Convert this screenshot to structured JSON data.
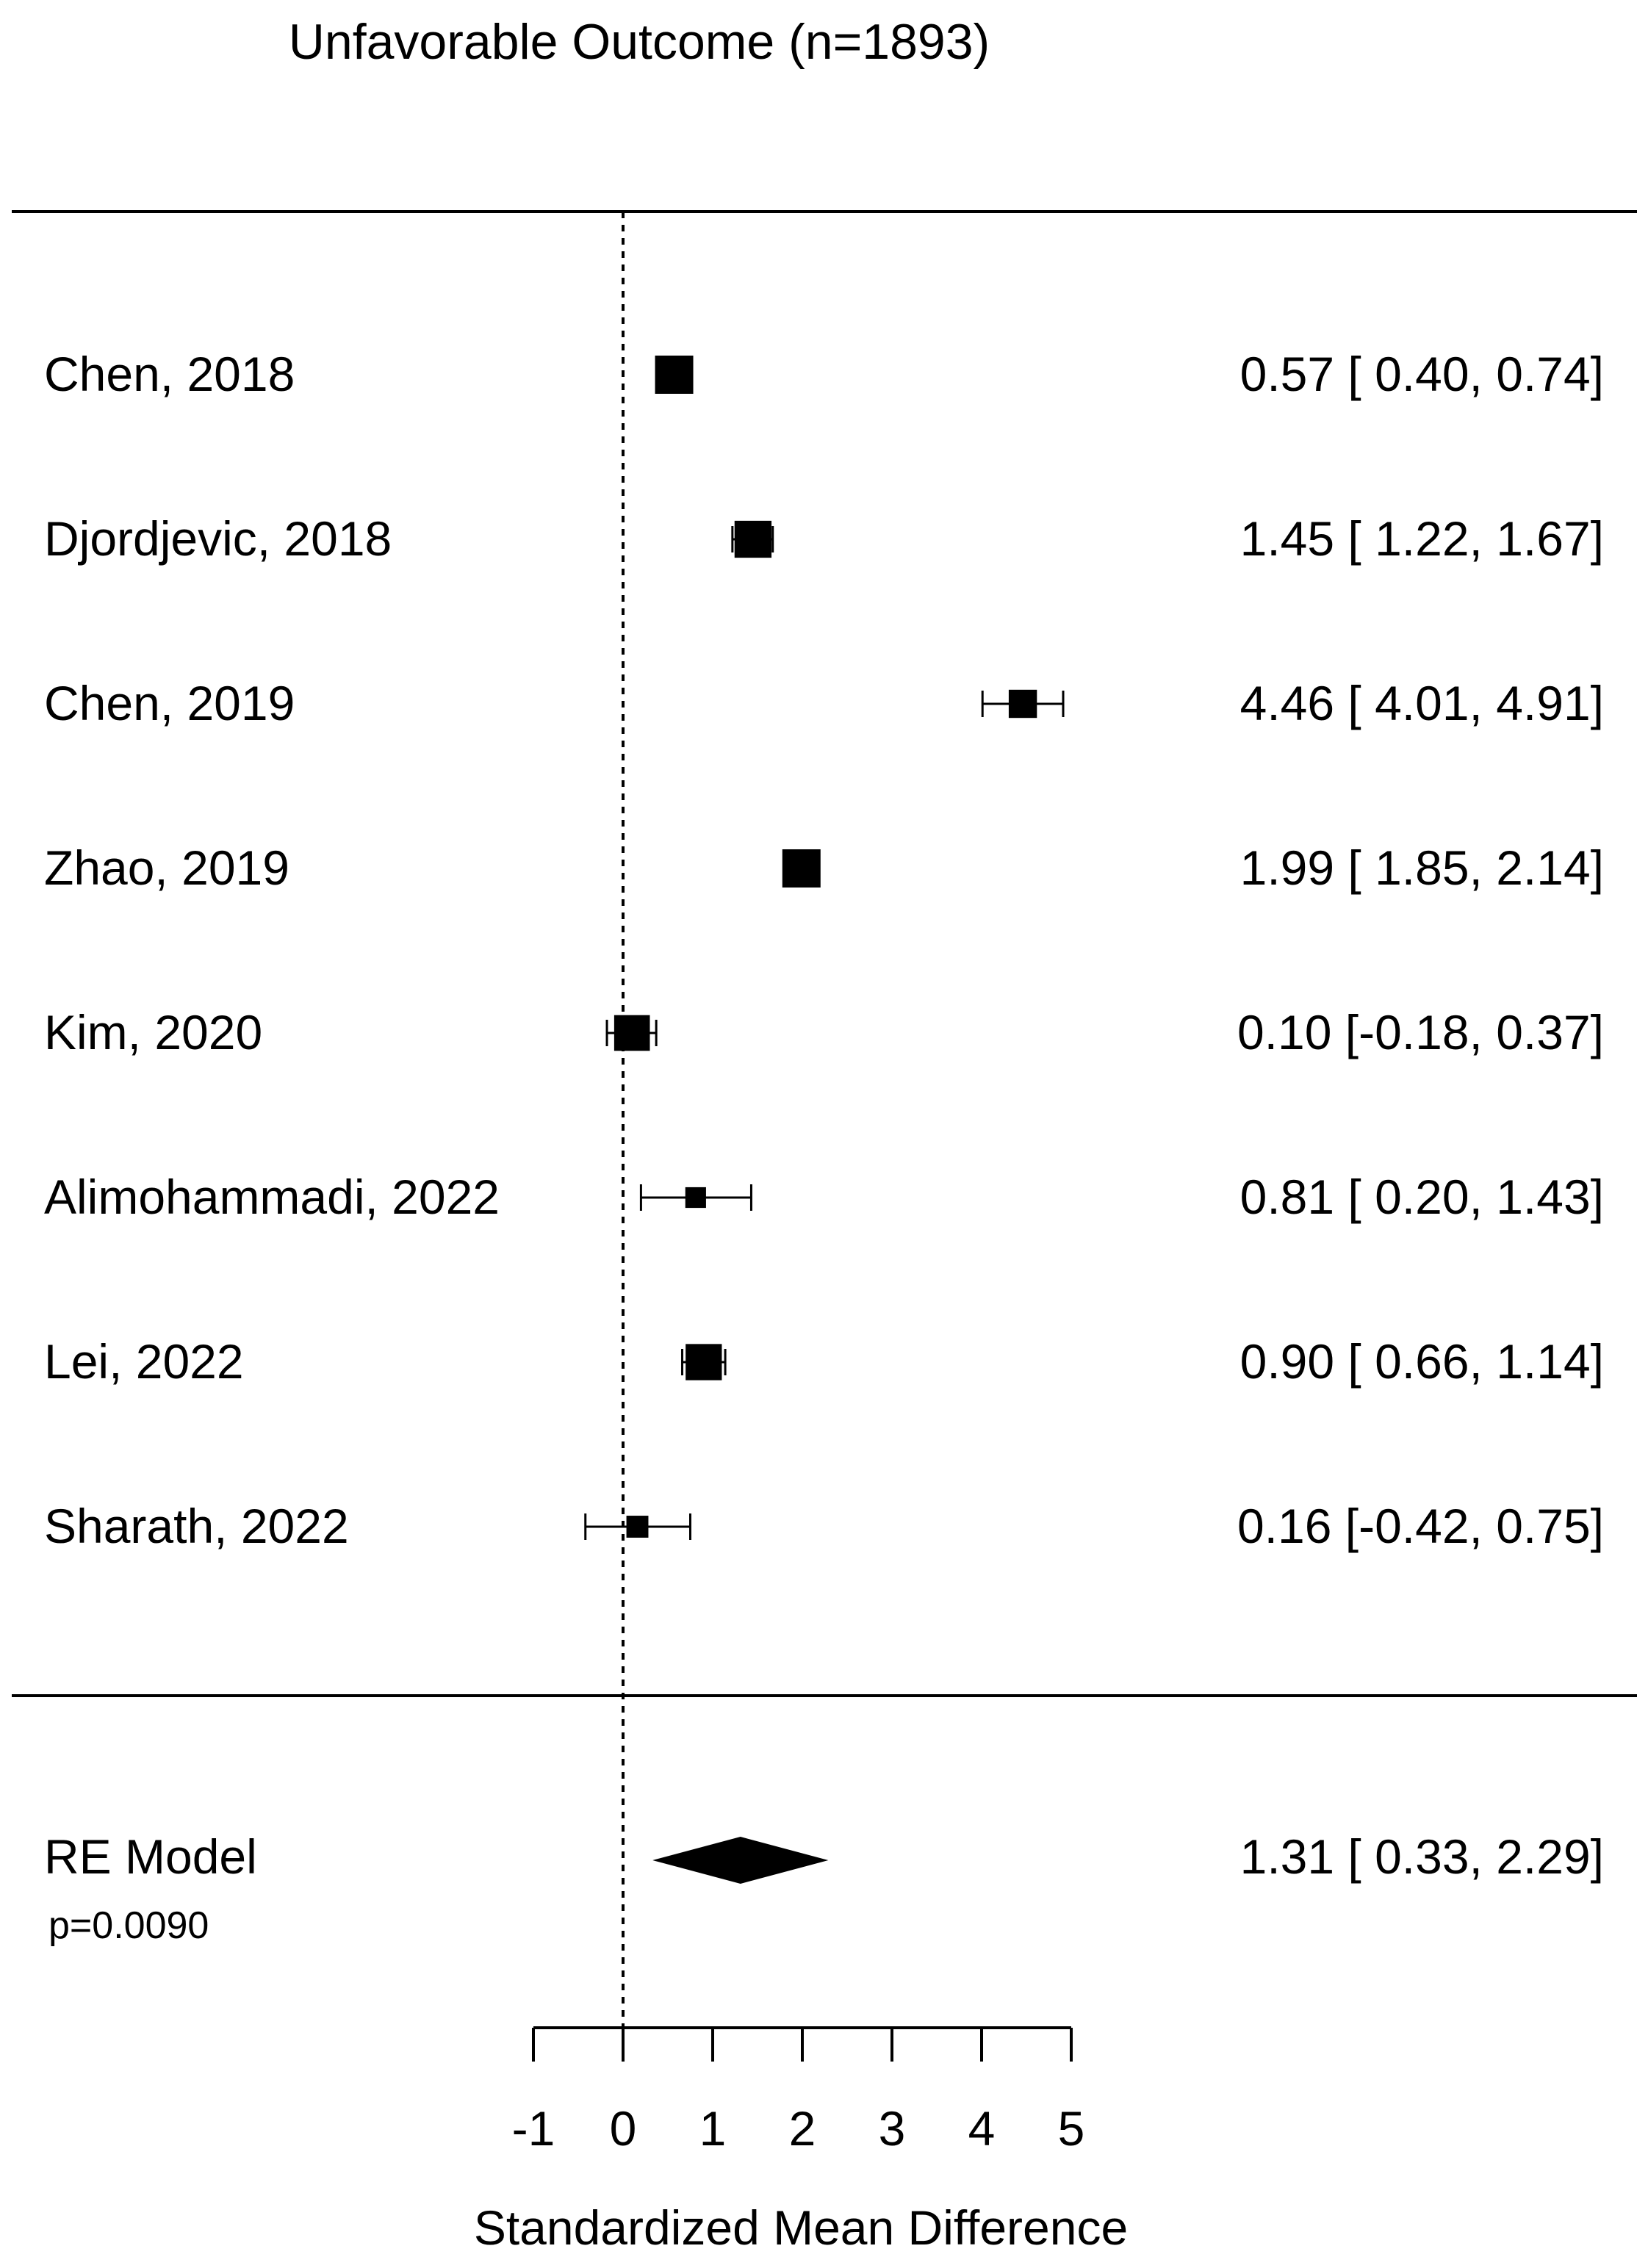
{
  "chart_data": {
    "type": "forest",
    "title": "Unfavorable Outcome (n=1893)",
    "xlabel": "Standardized Mean Difference",
    "xlim": [
      -1,
      5
    ],
    "xticks": [
      -1,
      0,
      1,
      2,
      3,
      4,
      5
    ],
    "xtick_labels": [
      "-1",
      "0",
      "1",
      "2",
      "3",
      "4",
      "5"
    ],
    "reference_line": 0,
    "studies": [
      {
        "label": "Chen, 2018",
        "estimate": 0.57,
        "lower": 0.4,
        "upper": 0.74,
        "ci_text": "0.57 [ 0.40, 0.74]",
        "weight": 1.0
      },
      {
        "label": "Djordjevic, 2018",
        "estimate": 1.45,
        "lower": 1.22,
        "upper": 1.67,
        "ci_text": "1.45 [ 1.22, 1.67]",
        "weight": 0.95
      },
      {
        "label": "Chen, 2019",
        "estimate": 4.46,
        "lower": 4.01,
        "upper": 4.91,
        "ci_text": "4.46 [ 4.01, 4.91]",
        "weight": 0.6
      },
      {
        "label": "Zhao, 2019",
        "estimate": 1.99,
        "lower": 1.85,
        "upper": 2.14,
        "ci_text": "1.99 [ 1.85, 2.14]",
        "weight": 1.0
      },
      {
        "label": "Kim, 2020",
        "estimate": 0.1,
        "lower": -0.18,
        "upper": 0.37,
        "ci_text": "0.10 [-0.18, 0.37]",
        "weight": 0.9
      },
      {
        "label": "Alimohammadi, 2022",
        "estimate": 0.81,
        "lower": 0.2,
        "upper": 1.43,
        "ci_text": "0.81 [ 0.20, 1.43]",
        "weight": 0.3
      },
      {
        "label": "Lei, 2022",
        "estimate": 0.9,
        "lower": 0.66,
        "upper": 1.14,
        "ci_text": "0.90 [ 0.66, 1.14]",
        "weight": 0.92
      },
      {
        "label": "Sharath, 2022",
        "estimate": 0.16,
        "lower": -0.42,
        "upper": 0.75,
        "ci_text": "0.16 [-0.42, 0.75]",
        "weight": 0.35
      }
    ],
    "summary": {
      "label": "RE Model",
      "estimate": 1.31,
      "lower": 0.33,
      "upper": 2.29,
      "ci_text": "1.31 [ 0.33, 2.29]",
      "p_value_text": "p=0.0090"
    },
    "colors": {
      "marker": "#000000",
      "line": "#000000",
      "background": "#ffffff"
    }
  }
}
